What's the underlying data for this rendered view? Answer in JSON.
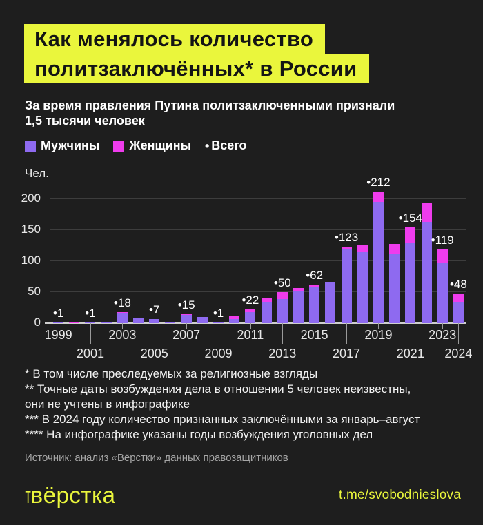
{
  "title": {
    "line1": "Как менялось количество",
    "line2": "политзаключённых* в России"
  },
  "subtitle": {
    "line1": "За время правления Путина политзаключенными признали",
    "line2": "1,5 тысячи человек"
  },
  "legend": {
    "men_label": "Мужчины",
    "women_label": "Женщины",
    "total_bullet": "•",
    "total_label": "Всего"
  },
  "colors": {
    "background": "#1e1e1e",
    "accent_yellow": "#eaf63c",
    "men_purple": "#8e6af0",
    "women_magenta": "#ef3ced",
    "gridline": "#3d3d3d",
    "axis_text": "#e6e6e6"
  },
  "chart_data": {
    "type": "bar",
    "stacked": true,
    "title": "Как менялось количество политзаключённых в России",
    "ylabel": "Чел.",
    "ylim": [
      0,
      220
    ],
    "y_ticks": [
      0,
      50,
      100,
      150,
      200
    ],
    "grid": true,
    "legend_position": "top",
    "categories": [
      1999,
      2000,
      2001,
      2002,
      2003,
      2004,
      2005,
      2006,
      2007,
      2008,
      2009,
      2010,
      2011,
      2012,
      2013,
      2014,
      2015,
      2016,
      2017,
      2018,
      2019,
      2020,
      2021,
      2022,
      2023,
      2024
    ],
    "series": [
      {
        "name": "Мужчины",
        "color": "#8e6af0",
        "values": [
          1,
          0,
          1,
          1,
          17,
          8,
          7,
          2,
          13,
          10,
          1,
          7,
          18,
          33,
          39,
          51,
          58,
          66,
          119,
          114,
          196,
          111,
          129,
          163,
          97,
          35
        ]
      },
      {
        "name": "Женщины",
        "color": "#ef3ced",
        "values": [
          0,
          2,
          0,
          0,
          1,
          1,
          0,
          0,
          2,
          0,
          0,
          5,
          4,
          8,
          11,
          6,
          4,
          0,
          4,
          13,
          16,
          17,
          25,
          32,
          22,
          13
        ]
      }
    ],
    "totals": [
      1,
      2,
      1,
      1,
      18,
      9,
      7,
      2,
      15,
      10,
      1,
      12,
      22,
      41,
      50,
      57,
      62,
      66,
      123,
      127,
      212,
      128,
      154,
      195,
      119,
      48
    ],
    "labeled_years": [
      1999,
      2001,
      2003,
      2005,
      2007,
      2009,
      2011,
      2013,
      2015,
      2017,
      2019,
      2021,
      2023,
      2024
    ],
    "label_bullet": "•",
    "x_tick_rows": {
      "upper": [
        1999,
        2003,
        2007,
        2011,
        2015,
        2019,
        2023
      ],
      "lower": [
        2001,
        2005,
        2009,
        2013,
        2017,
        2021,
        2024
      ]
    }
  },
  "footnotes": [
    "* В том числе преследуемых за религиозные взгляды",
    "** Точные даты возбуждения дела в отношении 5 человек неизвестны,",
    "они не учтены в инфографике",
    "*** В 2024 году количество признанных заключёнными за январь–август",
    "**** На инфографике указаны годы возбуждения уголовных дел"
  ],
  "source": "Источник: анализ «Вёрстки» данных правозащитников",
  "footer": {
    "logo_prefix": "т",
    "logo_main": "вёрстка",
    "link": "t.me/svobodnieslova"
  }
}
